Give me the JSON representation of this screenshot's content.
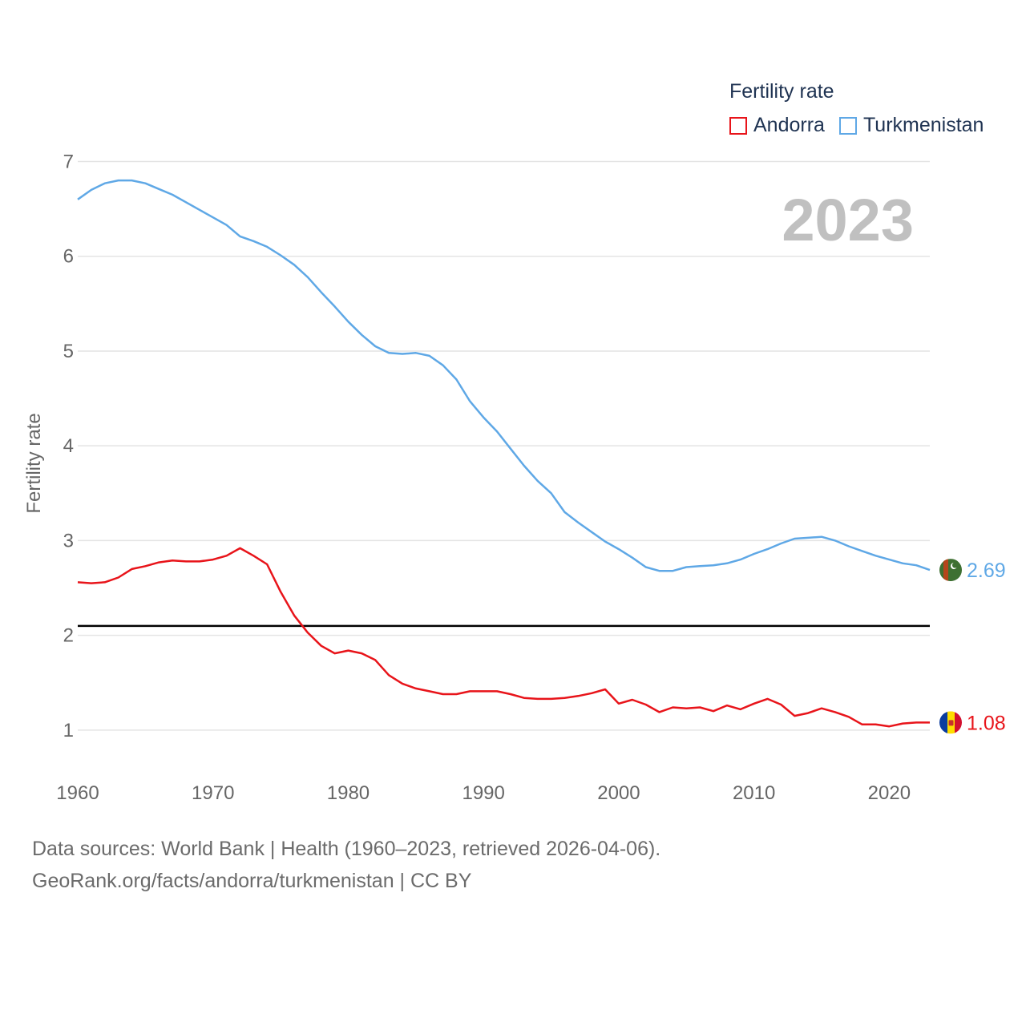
{
  "legend": {
    "title": "Fertility rate",
    "items": [
      {
        "label": "Andorra",
        "color": "#e8141a"
      },
      {
        "label": "Turkmenistan",
        "color": "#5fa8e6"
      }
    ]
  },
  "footer": {
    "line1": "Data sources: World Bank | Health (1960–2023, retrieved 2026-04-06).",
    "line2": "GeoRank.org/facts/andorra/turkmenistan | CC BY"
  },
  "chart_data": {
    "type": "line",
    "title": "Fertility rate",
    "year_label": "2023",
    "xlabel": "",
    "ylabel": "Fertility rate",
    "xlim": [
      1960,
      2023
    ],
    "ylim": [
      0.5,
      7.3
    ],
    "x_ticks": [
      1960,
      1970,
      1980,
      1990,
      2000,
      2010,
      2020
    ],
    "y_ticks": [
      1,
      2,
      3,
      4,
      5,
      6,
      7
    ],
    "reference_line": 2.1,
    "grid": true,
    "x": [
      1960,
      1961,
      1962,
      1963,
      1964,
      1965,
      1966,
      1967,
      1968,
      1969,
      1970,
      1971,
      1972,
      1973,
      1974,
      1975,
      1976,
      1977,
      1978,
      1979,
      1980,
      1981,
      1982,
      1983,
      1984,
      1985,
      1986,
      1987,
      1988,
      1989,
      1990,
      1991,
      1992,
      1993,
      1994,
      1995,
      1996,
      1997,
      1998,
      1999,
      2000,
      2001,
      2002,
      2003,
      2004,
      2005,
      2006,
      2007,
      2008,
      2009,
      2010,
      2011,
      2012,
      2013,
      2014,
      2015,
      2016,
      2017,
      2018,
      2019,
      2020,
      2021,
      2022,
      2023
    ],
    "series": [
      {
        "name": "Turkmenistan",
        "color": "#5fa8e6",
        "end_label": "2.69",
        "values": [
          6.6,
          6.7,
          6.77,
          6.8,
          6.8,
          6.77,
          6.71,
          6.65,
          6.57,
          6.49,
          6.41,
          6.33,
          6.21,
          6.16,
          6.1,
          6.01,
          5.91,
          5.78,
          5.62,
          5.47,
          5.31,
          5.17,
          5.05,
          4.98,
          4.97,
          4.98,
          4.95,
          4.85,
          4.7,
          4.47,
          4.3,
          4.15,
          3.97,
          3.79,
          3.63,
          3.5,
          3.3,
          3.19,
          3.09,
          2.99,
          2.91,
          2.82,
          2.72,
          2.68,
          2.68,
          2.72,
          2.73,
          2.74,
          2.76,
          2.8,
          2.86,
          2.91,
          2.97,
          3.02,
          3.03,
          3.04,
          3.0,
          2.94,
          2.89,
          2.84,
          2.8,
          2.76,
          2.74,
          2.69
        ]
      },
      {
        "name": "Andorra",
        "color": "#e8141a",
        "end_label": "1.08",
        "values": [
          2.56,
          2.55,
          2.56,
          2.61,
          2.7,
          2.73,
          2.77,
          2.79,
          2.78,
          2.78,
          2.8,
          2.84,
          2.92,
          2.84,
          2.75,
          2.46,
          2.21,
          2.03,
          1.89,
          1.81,
          1.84,
          1.81,
          1.74,
          1.58,
          1.49,
          1.44,
          1.41,
          1.38,
          1.38,
          1.41,
          1.41,
          1.41,
          1.38,
          1.34,
          1.33,
          1.33,
          1.34,
          1.36,
          1.39,
          1.43,
          1.28,
          1.32,
          1.27,
          1.19,
          1.24,
          1.23,
          1.24,
          1.2,
          1.26,
          1.22,
          1.28,
          1.33,
          1.27,
          1.15,
          1.18,
          1.23,
          1.19,
          1.14,
          1.06,
          1.06,
          1.04,
          1.07,
          1.08,
          1.08
        ]
      }
    ]
  }
}
